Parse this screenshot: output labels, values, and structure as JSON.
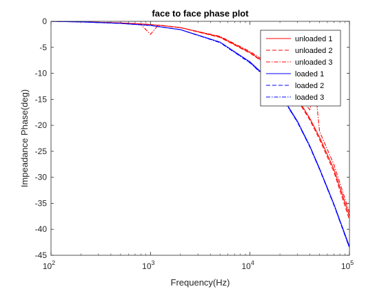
{
  "chart_data": {
    "type": "line",
    "title": "face to face phase plot",
    "xlabel": "Frequency(Hz)",
    "ylabel": "Impeadance Phase(deg)",
    "xscale": "log",
    "xlim": [
      100,
      100000
    ],
    "ylim": [
      -45,
      0
    ],
    "yticks": [
      0,
      -5,
      -10,
      -15,
      -20,
      -25,
      -30,
      -35,
      -40,
      -45
    ],
    "ytick_labels": [
      "0",
      "-5",
      "-10",
      "-15",
      "-20",
      "-25",
      "-30",
      "-35",
      "-40",
      "-45"
    ],
    "xticks": [
      100,
      1000,
      10000,
      100000
    ],
    "xtick_labels": [
      {
        "base": "10",
        "exp": "2"
      },
      {
        "base": "10",
        "exp": "3"
      },
      {
        "base": "10",
        "exp": "4"
      },
      {
        "base": "10",
        "exp": "5"
      }
    ],
    "grid": false,
    "legend_position": "top-right",
    "x": [
      100,
      200,
      500,
      1000,
      2000,
      5000,
      10000,
      15000,
      20000,
      30000,
      40000,
      50000,
      70000,
      100000
    ],
    "series": [
      {
        "name": "unloaded 1",
        "color": "#ff0000",
        "dash": "solid",
        "values": [
          0,
          -0.1,
          -0.3,
          -0.6,
          -1.2,
          -3.0,
          -6.0,
          -8.3,
          -10.5,
          -14.8,
          -18.7,
          -22.3,
          -28.5,
          -37.5
        ]
      },
      {
        "name": "unloaded 2",
        "color": "#ff0000",
        "dash": "dashed",
        "values": [
          0,
          -0.1,
          -0.3,
          -0.6,
          -1.2,
          -3.1,
          -6.1,
          -8.4,
          -10.7,
          -15.1,
          -19.0,
          -22.7,
          -29.0,
          -38.2
        ]
      },
      {
        "name": "unloaded 3",
        "color": "#ff0000",
        "dash": "dashdot",
        "x": [
          100,
          200,
          500,
          800,
          1000,
          1200,
          2000,
          5000,
          10000,
          15000,
          20000,
          30000,
          40000,
          45000,
          50000,
          70000,
          100000
        ],
        "values": [
          0,
          -0.1,
          -0.3,
          -0.6,
          -2.5,
          -0.7,
          -1.2,
          -2.9,
          -5.8,
          -8.0,
          -10.2,
          -14.4,
          -17.0,
          -12.2,
          -21.2,
          -27.6,
          -36.8
        ]
      },
      {
        "name": "loaded 1",
        "color": "#0000ff",
        "dash": "solid",
        "values": [
          0,
          -0.1,
          -0.4,
          -0.8,
          -1.6,
          -4.0,
          -7.8,
          -10.9,
          -13.8,
          -19.2,
          -24.0,
          -28.3,
          -35.2,
          -43.3
        ]
      },
      {
        "name": "loaded 2",
        "color": "#0000ff",
        "dash": "dashed",
        "values": [
          0,
          -0.1,
          -0.4,
          -0.8,
          -1.6,
          -4.0,
          -7.9,
          -11.0,
          -13.9,
          -19.3,
          -24.1,
          -28.4,
          -35.3,
          -43.5
        ]
      },
      {
        "name": "loaded 3",
        "color": "#0000ff",
        "dash": "dashdot",
        "values": [
          0,
          -0.1,
          -0.4,
          -0.8,
          -1.6,
          -4.1,
          -8.0,
          -11.1,
          -14.0,
          -19.4,
          -24.2,
          -28.5,
          -35.4,
          -43.6
        ]
      }
    ]
  }
}
